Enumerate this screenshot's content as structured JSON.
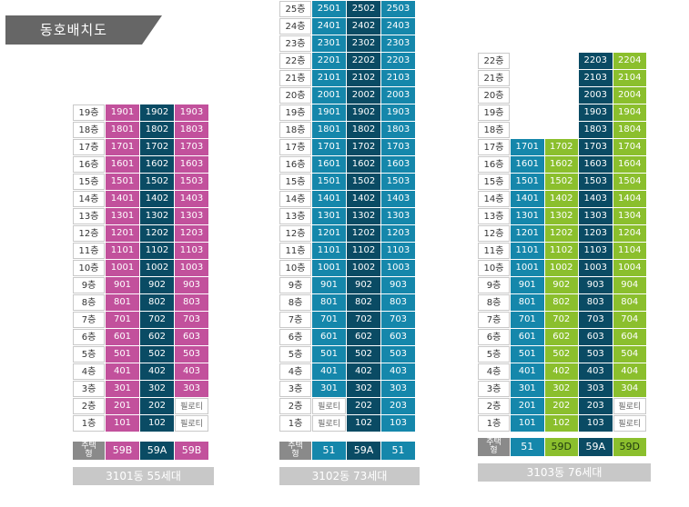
{
  "header": {
    "title": "동호배치도"
  },
  "colors": {
    "header": "#666666",
    "pink": "#c2519c",
    "navy": "#0a4b64",
    "teal": "#1587ab",
    "green": "#8bbf2d",
    "type_label": "#8a8a8a",
    "footer": "#c8c8c8"
  },
  "buildings": [
    {
      "id": "3101",
      "footer": "3101동 55세대",
      "columns": [
        {
          "type": "59B",
          "color": "pink"
        },
        {
          "type": "59A",
          "color": "navy"
        },
        {
          "type": "59B",
          "color": "pink"
        }
      ],
      "floors": [
        {
          "label": "19층",
          "units": [
            "1901",
            "1902",
            "1903"
          ]
        },
        {
          "label": "18층",
          "units": [
            "1801",
            "1802",
            "1803"
          ]
        },
        {
          "label": "17층",
          "units": [
            "1701",
            "1702",
            "1703"
          ]
        },
        {
          "label": "16층",
          "units": [
            "1601",
            "1602",
            "1603"
          ]
        },
        {
          "label": "15층",
          "units": [
            "1501",
            "1502",
            "1503"
          ]
        },
        {
          "label": "14층",
          "units": [
            "1401",
            "1402",
            "1403"
          ]
        },
        {
          "label": "13층",
          "units": [
            "1301",
            "1302",
            "1303"
          ]
        },
        {
          "label": "12층",
          "units": [
            "1201",
            "1202",
            "1203"
          ]
        },
        {
          "label": "11층",
          "units": [
            "1101",
            "1102",
            "1103"
          ]
        },
        {
          "label": "10층",
          "units": [
            "1001",
            "1002",
            "1003"
          ]
        },
        {
          "label": "9층",
          "units": [
            "901",
            "902",
            "903"
          ]
        },
        {
          "label": "8층",
          "units": [
            "801",
            "802",
            "803"
          ]
        },
        {
          "label": "7층",
          "units": [
            "701",
            "702",
            "703"
          ]
        },
        {
          "label": "6층",
          "units": [
            "601",
            "602",
            "603"
          ]
        },
        {
          "label": "5층",
          "units": [
            "501",
            "502",
            "503"
          ]
        },
        {
          "label": "4층",
          "units": [
            "401",
            "402",
            "403"
          ]
        },
        {
          "label": "3층",
          "units": [
            "301",
            "302",
            "303"
          ]
        },
        {
          "label": "2층",
          "units": [
            "201",
            "202",
            "필로티"
          ]
        },
        {
          "label": "1층",
          "units": [
            "101",
            "102",
            "필로티"
          ]
        }
      ]
    },
    {
      "id": "3102",
      "footer": "3102동 73세대",
      "columns": [
        {
          "type": "51",
          "color": "teal"
        },
        {
          "type": "59A",
          "color": "navy"
        },
        {
          "type": "51",
          "color": "teal"
        }
      ],
      "floors": [
        {
          "label": "25층",
          "units": [
            "2501",
            "2502",
            "2503"
          ]
        },
        {
          "label": "24층",
          "units": [
            "2401",
            "2402",
            "2403"
          ]
        },
        {
          "label": "23층",
          "units": [
            "2301",
            "2302",
            "2303"
          ]
        },
        {
          "label": "22층",
          "units": [
            "2201",
            "2202",
            "2203"
          ]
        },
        {
          "label": "21층",
          "units": [
            "2101",
            "2102",
            "2103"
          ]
        },
        {
          "label": "20층",
          "units": [
            "2001",
            "2002",
            "2003"
          ]
        },
        {
          "label": "19층",
          "units": [
            "1901",
            "1902",
            "1903"
          ]
        },
        {
          "label": "18층",
          "units": [
            "1801",
            "1802",
            "1803"
          ]
        },
        {
          "label": "17층",
          "units": [
            "1701",
            "1702",
            "1703"
          ]
        },
        {
          "label": "16층",
          "units": [
            "1601",
            "1602",
            "1603"
          ]
        },
        {
          "label": "15층",
          "units": [
            "1501",
            "1502",
            "1503"
          ]
        },
        {
          "label": "14층",
          "units": [
            "1401",
            "1402",
            "1403"
          ]
        },
        {
          "label": "13층",
          "units": [
            "1301",
            "1302",
            "1303"
          ]
        },
        {
          "label": "12층",
          "units": [
            "1201",
            "1202",
            "1203"
          ]
        },
        {
          "label": "11층",
          "units": [
            "1101",
            "1102",
            "1103"
          ]
        },
        {
          "label": "10층",
          "units": [
            "1001",
            "1002",
            "1003"
          ]
        },
        {
          "label": "9층",
          "units": [
            "901",
            "902",
            "903"
          ]
        },
        {
          "label": "8층",
          "units": [
            "801",
            "802",
            "803"
          ]
        },
        {
          "label": "7층",
          "units": [
            "701",
            "702",
            "703"
          ]
        },
        {
          "label": "6층",
          "units": [
            "601",
            "602",
            "603"
          ]
        },
        {
          "label": "5층",
          "units": [
            "501",
            "502",
            "503"
          ]
        },
        {
          "label": "4층",
          "units": [
            "401",
            "402",
            "403"
          ]
        },
        {
          "label": "3층",
          "units": [
            "301",
            "302",
            "303"
          ]
        },
        {
          "label": "2층",
          "units": [
            "필로티",
            "202",
            "203"
          ]
        },
        {
          "label": "1층",
          "units": [
            "필로티",
            "102",
            "103"
          ]
        }
      ]
    },
    {
      "id": "3103",
      "footer": "3103동 76세대",
      "columns": [
        {
          "type": "51",
          "color": "teal"
        },
        {
          "type": "59D",
          "color": "green"
        },
        {
          "type": "59A",
          "color": "navy"
        },
        {
          "type": "59D",
          "color": "green"
        }
      ],
      "floors": [
        {
          "label": "22층",
          "units": [
            "",
            "",
            "2203",
            "2204"
          ]
        },
        {
          "label": "21층",
          "units": [
            "",
            "",
            "2103",
            "2104"
          ]
        },
        {
          "label": "20층",
          "units": [
            "",
            "",
            "2003",
            "2004"
          ]
        },
        {
          "label": "19층",
          "units": [
            "",
            "",
            "1903",
            "1904"
          ]
        },
        {
          "label": "18층",
          "units": [
            "",
            "",
            "1803",
            "1804"
          ]
        },
        {
          "label": "17층",
          "units": [
            "1701",
            "1702",
            "1703",
            "1704"
          ]
        },
        {
          "label": "16층",
          "units": [
            "1601",
            "1602",
            "1603",
            "1604"
          ]
        },
        {
          "label": "15층",
          "units": [
            "1501",
            "1502",
            "1503",
            "1504"
          ]
        },
        {
          "label": "14층",
          "units": [
            "1401",
            "1402",
            "1403",
            "1404"
          ]
        },
        {
          "label": "13층",
          "units": [
            "1301",
            "1302",
            "1303",
            "1304"
          ]
        },
        {
          "label": "12층",
          "units": [
            "1201",
            "1202",
            "1203",
            "1204"
          ]
        },
        {
          "label": "11층",
          "units": [
            "1101",
            "1102",
            "1103",
            "1104"
          ]
        },
        {
          "label": "10층",
          "units": [
            "1001",
            "1002",
            "1003",
            "1004"
          ]
        },
        {
          "label": "9층",
          "units": [
            "901",
            "902",
            "903",
            "904"
          ]
        },
        {
          "label": "8층",
          "units": [
            "801",
            "802",
            "803",
            "804"
          ]
        },
        {
          "label": "7층",
          "units": [
            "701",
            "702",
            "703",
            "704"
          ]
        },
        {
          "label": "6층",
          "units": [
            "601",
            "602",
            "603",
            "604"
          ]
        },
        {
          "label": "5층",
          "units": [
            "501",
            "502",
            "503",
            "504"
          ]
        },
        {
          "label": "4층",
          "units": [
            "401",
            "402",
            "403",
            "404"
          ]
        },
        {
          "label": "3층",
          "units": [
            "301",
            "302",
            "303",
            "304"
          ]
        },
        {
          "label": "2층",
          "units": [
            "201",
            "202",
            "203",
            "필로티"
          ]
        },
        {
          "label": "1층",
          "units": [
            "101",
            "102",
            "103",
            "필로티"
          ]
        }
      ]
    }
  ],
  "type_label": "주택형"
}
